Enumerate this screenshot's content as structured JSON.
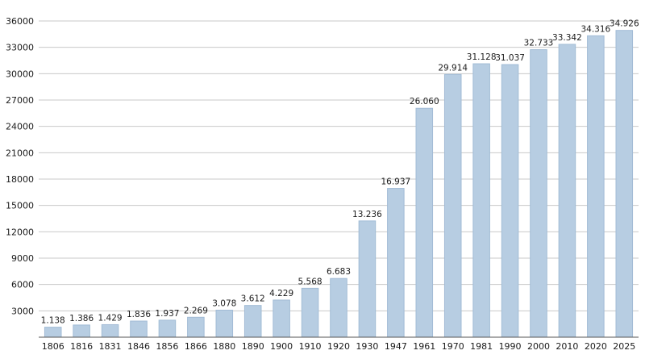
{
  "chart_data": {
    "type": "bar",
    "categories": [
      "1806",
      "1816",
      "1831",
      "1846",
      "1856",
      "1866",
      "1880",
      "1890",
      "1900",
      "1910",
      "1920",
      "1930",
      "1947",
      "1961",
      "1970",
      "1981",
      "1990",
      "2000",
      "2010",
      "2020",
      "2025"
    ],
    "values": [
      1138,
      1386,
      1429,
      1836,
      1937,
      2269,
      3078,
      3612,
      4229,
      5568,
      6683,
      13236,
      16937,
      26060,
      29914,
      31128,
      31037,
      32733,
      33342,
      34316,
      34926
    ],
    "value_labels": [
      "1.138",
      "1.386",
      "1.429",
      "1.836",
      "1.937",
      "2.269",
      "3.078",
      "3.612",
      "4.229",
      "5.568",
      "6.683",
      "13.236",
      "16.937",
      "26.060",
      "29.914",
      "31.128",
      "31.037",
      "32.733",
      "33.342",
      "34.316",
      "34.926"
    ],
    "title": "",
    "xlabel": "",
    "ylabel": "",
    "ylim": [
      0,
      36000
    ],
    "ytick_step": 3000,
    "ytick_labels": [
      "3000",
      "6000",
      "9000",
      "12000",
      "15000",
      "18000",
      "21000",
      "24000",
      "27000",
      "30000",
      "33000",
      "36000"
    ],
    "grid": true,
    "legend": "none",
    "colors": {
      "bar_fill": "#b7cde2",
      "bar_stroke": "#a2bcd6",
      "gridline": "#c9c9c9",
      "axis": "#555555",
      "text": "#1a1a1a"
    }
  }
}
